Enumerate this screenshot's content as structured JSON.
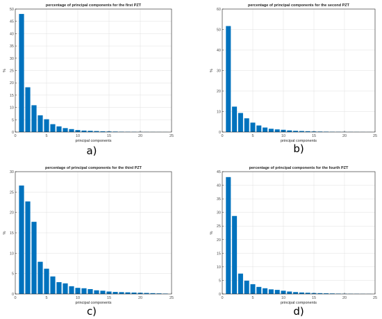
{
  "colors": {
    "bar": "#0072bd",
    "grid": "#dfdfdf",
    "axis": "#262626"
  },
  "chart_data": [
    {
      "type": "bar",
      "panel": "a)",
      "title": "percentage of principal components for the first PZT",
      "xlabel": "principal components",
      "ylabel": "%",
      "xlim": [
        0,
        25
      ],
      "ylim": [
        0,
        50
      ],
      "xticks": [
        0,
        5,
        10,
        15,
        20,
        25
      ],
      "yticks": [
        0,
        5,
        10,
        15,
        20,
        25,
        30,
        35,
        40,
        45,
        50
      ],
      "grid": true,
      "x": [
        1,
        2,
        3,
        4,
        5,
        6,
        7,
        8,
        9,
        10,
        11,
        12,
        13,
        14,
        15,
        16,
        17,
        18,
        19,
        20,
        21,
        22,
        23,
        24
      ],
      "values": [
        48,
        18.2,
        10.9,
        6.8,
        5.2,
        3.2,
        2.3,
        1.6,
        1.2,
        0.8,
        0.6,
        0.5,
        0.4,
        0.3,
        0.25,
        0.2,
        0.15,
        0.12,
        0.1,
        0.08,
        0.06,
        0.05,
        0.04,
        0.03
      ]
    },
    {
      "type": "bar",
      "panel": "b)",
      "title": "percentage of principal components for the second PZT",
      "xlabel": "principal components",
      "ylabel": "%",
      "xlim": [
        0,
        25
      ],
      "ylim": [
        0,
        60
      ],
      "xticks": [
        0,
        5,
        10,
        15,
        20,
        25
      ],
      "yticks": [
        0,
        10,
        20,
        30,
        40,
        50,
        60
      ],
      "grid": true,
      "x": [
        1,
        2,
        3,
        4,
        5,
        6,
        7,
        8,
        9,
        10,
        11,
        12,
        13,
        14,
        15,
        16,
        17,
        18,
        19,
        20,
        21,
        22,
        23,
        24
      ],
      "values": [
        51.7,
        12.4,
        9.3,
        6.7,
        4.6,
        3.2,
        2.2,
        1.6,
        1.3,
        1.1,
        0.8,
        0.6,
        0.5,
        0.4,
        0.3,
        0.25,
        0.2,
        0.15,
        0.12,
        0.1,
        0.08,
        0.06,
        0.05,
        0.04
      ]
    },
    {
      "type": "bar",
      "panel": "c)",
      "title": "percentage of principal components for the third PZT",
      "xlabel": "principal components",
      "ylabel": "%",
      "xlim": [
        0,
        25
      ],
      "ylim": [
        0,
        30
      ],
      "xticks": [
        0,
        5,
        10,
        15,
        20,
        25
      ],
      "yticks": [
        0,
        5,
        10,
        15,
        20,
        25,
        30
      ],
      "grid": true,
      "x": [
        1,
        2,
        3,
        4,
        5,
        6,
        7,
        8,
        9,
        10,
        11,
        12,
        13,
        14,
        15,
        16,
        17,
        18,
        19,
        20,
        21,
        22,
        23,
        24
      ],
      "values": [
        26.6,
        22.7,
        17.7,
        7.9,
        6.2,
        4.3,
        2.9,
        2.6,
        1.9,
        1.5,
        1.4,
        1.2,
        0.9,
        0.8,
        0.6,
        0.5,
        0.45,
        0.4,
        0.35,
        0.3,
        0.25,
        0.2,
        0.15,
        0.1
      ]
    },
    {
      "type": "bar",
      "panel": "d)",
      "title": "percentage of principal components for the fourth PZT",
      "xlabel": "principal components",
      "ylabel": "%",
      "xlim": [
        0,
        25
      ],
      "ylim": [
        0,
        45
      ],
      "xticks": [
        0,
        5,
        10,
        15,
        20,
        25
      ],
      "yticks": [
        0,
        5,
        10,
        15,
        20,
        25,
        30,
        35,
        40,
        45
      ],
      "grid": true,
      "x": [
        1,
        2,
        3,
        4,
        5,
        6,
        7,
        8,
        9,
        10,
        11,
        12,
        13,
        14,
        15,
        16,
        17,
        18,
        19,
        20,
        21,
        22,
        23,
        24
      ],
      "values": [
        43,
        28.7,
        7.5,
        4.9,
        3.6,
        2.6,
        2.1,
        1.7,
        1.5,
        1.2,
        0.9,
        0.7,
        0.55,
        0.45,
        0.35,
        0.3,
        0.25,
        0.2,
        0.15,
        0.12,
        0.1,
        0.08,
        0.06,
        0.05
      ]
    }
  ]
}
